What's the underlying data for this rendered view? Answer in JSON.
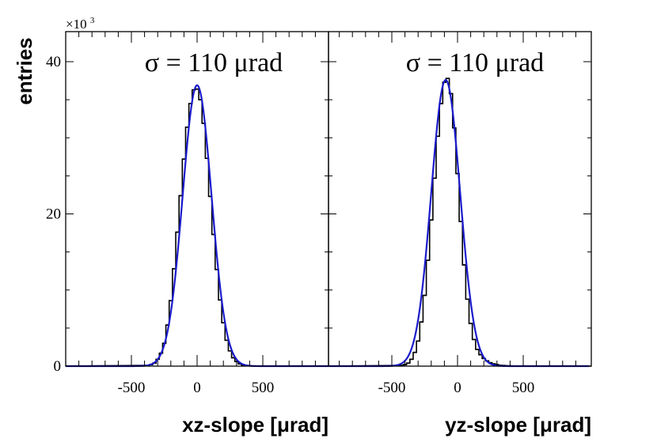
{
  "figure": {
    "ylabel": "entries",
    "y_multiplier_base": "×10",
    "y_multiplier_exp": "3",
    "fit_color": "#1a1acc",
    "hist_color": "#000000"
  },
  "chart_data": [
    {
      "type": "line",
      "title": "σ = 110 μrad",
      "xlabel": "xz-slope [μrad]",
      "ylabel": "entries",
      "xlim": [
        -1000,
        1000
      ],
      "ylim": [
        0,
        44
      ],
      "y_unit_multiplier": 1000,
      "x_ticks": [
        -500,
        0,
        500
      ],
      "x_tick_labels": [
        "-500",
        "0",
        "500"
      ],
      "y_ticks": [
        0,
        20,
        40
      ],
      "y_tick_labels": [
        "0",
        "20",
        "40"
      ],
      "grid": false,
      "series": [
        {
          "kind": "histogram",
          "bin_width": 25,
          "x": [
            -375,
            -350,
            -325,
            -300,
            -275,
            -250,
            -225,
            -200,
            -175,
            -150,
            -125,
            -100,
            -75,
            -50,
            -25,
            0,
            25,
            50,
            75,
            100,
            125,
            150,
            175,
            200,
            225,
            250,
            275,
            300,
            325,
            350,
            375,
            400,
            425
          ],
          "values": [
            0.1,
            0.2,
            0.4,
            0.9,
            1.7,
            3.0,
            5.4,
            8.6,
            12.8,
            17.6,
            22.4,
            27.2,
            31.4,
            34.5,
            36.3,
            36.4,
            35.0,
            31.9,
            27.3,
            22.3,
            17.3,
            12.7,
            8.7,
            5.7,
            3.4,
            2.0,
            1.1,
            0.6,
            0.3,
            0.15,
            0.08,
            0.04,
            0.02
          ]
        },
        {
          "kind": "gaussian_fit",
          "amplitude": 36.9,
          "mean": 0,
          "sigma": 110
        }
      ]
    },
    {
      "type": "line",
      "title": "σ = 110 μrad",
      "xlabel": "yz-slope [μrad]",
      "ylabel": "",
      "xlim": [
        -1000,
        1000
      ],
      "ylim": [
        0,
        44
      ],
      "y_unit_multiplier": 1000,
      "x_ticks": [
        -500,
        0,
        500
      ],
      "x_tick_labels": [
        "-500",
        "0",
        "500"
      ],
      "y_ticks": [
        0,
        20,
        40
      ],
      "y_tick_labels": [],
      "grid": false,
      "series": [
        {
          "kind": "histogram",
          "bin_width": 25,
          "x": [
            -425,
            -400,
            -375,
            -350,
            -325,
            -300,
            -275,
            -250,
            -225,
            -200,
            -175,
            -150,
            -125,
            -100,
            -75,
            -50,
            -25,
            0,
            25,
            50,
            75,
            100,
            125,
            150,
            175,
            200,
            225,
            250,
            275,
            300,
            325,
            350,
            375,
            400,
            425
          ],
          "values": [
            0.1,
            0.2,
            0.4,
            0.9,
            1.8,
            3.3,
            5.8,
            9.3,
            13.9,
            19.2,
            24.7,
            30.2,
            34.5,
            37.3,
            37.8,
            35.8,
            31.3,
            25.3,
            19.0,
            13.3,
            8.8,
            5.6,
            3.5,
            2.2,
            1.5,
            1.0,
            0.7,
            0.45,
            0.3,
            0.2,
            0.12,
            0.08,
            0.05,
            0.03,
            0.02
          ]
        },
        {
          "kind": "gaussian_fit",
          "amplitude": 37.6,
          "mean": -90,
          "sigma": 110
        }
      ]
    }
  ]
}
